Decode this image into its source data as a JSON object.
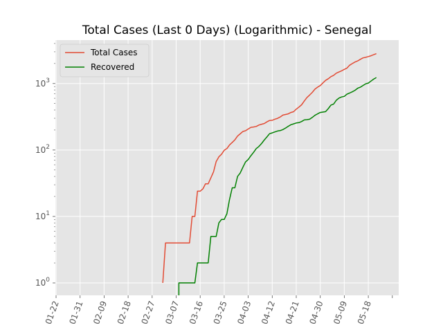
{
  "chart_data": {
    "type": "line",
    "title": "Total Cases (Last 0 Days) (Logarithmic) - Senegal",
    "xlabel": "",
    "ylabel": "",
    "y_scale": "log",
    "ylim": [
      0.65,
      4500
    ],
    "grid": true,
    "legend_position": "top-left",
    "x_ticks": [
      "01-22",
      "01-31",
      "02-09",
      "02-18",
      "02-27",
      "03-07",
      "03-16",
      "03-25",
      "04-03",
      "04-12",
      "04-21",
      "04-30",
      "05-09",
      "05-18"
    ],
    "y_ticks": [
      {
        "value": 1,
        "base": "10",
        "exp": "0"
      },
      {
        "value": 10,
        "base": "10",
        "exp": "1"
      },
      {
        "value": 100,
        "base": "10",
        "exp": "2"
      },
      {
        "value": 1000,
        "base": "10",
        "exp": "3"
      }
    ],
    "series": [
      {
        "name": "Total Cases",
        "color": "#E24A33",
        "points": [
          [
            "03-02",
            1
          ],
          [
            "03-03",
            4
          ],
          [
            "03-04",
            4
          ],
          [
            "03-05",
            4
          ],
          [
            "03-06",
            4
          ],
          [
            "03-07",
            4
          ],
          [
            "03-08",
            4
          ],
          [
            "03-09",
            4
          ],
          [
            "03-10",
            4
          ],
          [
            "03-11",
            4
          ],
          [
            "03-12",
            4
          ],
          [
            "03-13",
            10
          ],
          [
            "03-14",
            10
          ],
          [
            "03-15",
            24
          ],
          [
            "03-16",
            24
          ],
          [
            "03-17",
            26
          ],
          [
            "03-18",
            31
          ],
          [
            "03-19",
            31
          ],
          [
            "03-20",
            38
          ],
          [
            "03-21",
            47
          ],
          [
            "03-22",
            67
          ],
          [
            "03-23",
            79
          ],
          [
            "03-24",
            86
          ],
          [
            "03-25",
            99
          ],
          [
            "03-26",
            105
          ],
          [
            "03-27",
            119
          ],
          [
            "03-28",
            130
          ],
          [
            "03-29",
            142
          ],
          [
            "03-30",
            162
          ],
          [
            "03-31",
            175
          ],
          [
            "04-01",
            190
          ],
          [
            "04-02",
            195
          ],
          [
            "04-03",
            207
          ],
          [
            "04-04",
            219
          ],
          [
            "04-05",
            222
          ],
          [
            "04-06",
            226
          ],
          [
            "04-07",
            237
          ],
          [
            "04-08",
            244
          ],
          [
            "04-09",
            250
          ],
          [
            "04-10",
            265
          ],
          [
            "04-11",
            278
          ],
          [
            "04-12",
            280
          ],
          [
            "04-13",
            291
          ],
          [
            "04-14",
            299
          ],
          [
            "04-15",
            314
          ],
          [
            "04-16",
            335
          ],
          [
            "04-17",
            342
          ],
          [
            "04-18",
            350
          ],
          [
            "04-19",
            367
          ],
          [
            "04-20",
            377
          ],
          [
            "04-21",
            412
          ],
          [
            "04-22",
            442
          ],
          [
            "04-23",
            479
          ],
          [
            "04-24",
            545
          ],
          [
            "04-25",
            614
          ],
          [
            "04-26",
            671
          ],
          [
            "04-27",
            736
          ],
          [
            "04-28",
            823
          ],
          [
            "04-29",
            882
          ],
          [
            "04-30",
            933
          ],
          [
            "05-01",
            1024
          ],
          [
            "05-02",
            1115
          ],
          [
            "05-03",
            1182
          ],
          [
            "05-04",
            1271
          ],
          [
            "05-05",
            1329
          ],
          [
            "05-06",
            1433
          ],
          [
            "05-07",
            1492
          ],
          [
            "05-08",
            1551
          ],
          [
            "05-09",
            1634
          ],
          [
            "05-10",
            1709
          ],
          [
            "05-11",
            1886
          ],
          [
            "05-12",
            1995
          ],
          [
            "05-13",
            2105
          ],
          [
            "05-14",
            2189
          ],
          [
            "05-15",
            2310
          ],
          [
            "05-16",
            2429
          ],
          [
            "05-17",
            2480
          ],
          [
            "05-18",
            2544
          ],
          [
            "05-19",
            2617
          ],
          [
            "05-20",
            2714
          ],
          [
            "05-21",
            2812
          ]
        ]
      },
      {
        "name": "Recovered",
        "color": "#008000",
        "points": [
          [
            "03-08",
            0.5
          ],
          [
            "03-08",
            1
          ],
          [
            "03-09",
            1
          ],
          [
            "03-10",
            1
          ],
          [
            "03-11",
            1
          ],
          [
            "03-12",
            1
          ],
          [
            "03-13",
            1
          ],
          [
            "03-14",
            1
          ],
          [
            "03-15",
            2
          ],
          [
            "03-16",
            2
          ],
          [
            "03-17",
            2
          ],
          [
            "03-18",
            2
          ],
          [
            "03-19",
            2
          ],
          [
            "03-20",
            5
          ],
          [
            "03-21",
            5
          ],
          [
            "03-22",
            5
          ],
          [
            "03-23",
            8
          ],
          [
            "03-24",
            9
          ],
          [
            "03-25",
            9
          ],
          [
            "03-26",
            11
          ],
          [
            "03-27",
            18
          ],
          [
            "03-28",
            27
          ],
          [
            "03-29",
            27
          ],
          [
            "03-30",
            40
          ],
          [
            "03-31",
            45
          ],
          [
            "04-01",
            55
          ],
          [
            "04-02",
            66
          ],
          [
            "04-03",
            72
          ],
          [
            "04-04",
            82
          ],
          [
            "04-05",
            92
          ],
          [
            "04-06",
            105
          ],
          [
            "04-07",
            113
          ],
          [
            "04-08",
            125
          ],
          [
            "04-09",
            141
          ],
          [
            "04-10",
            157
          ],
          [
            "04-11",
            176
          ],
          [
            "04-12",
            181
          ],
          [
            "04-13",
            187
          ],
          [
            "04-14",
            193
          ],
          [
            "04-15",
            196
          ],
          [
            "04-16",
            203
          ],
          [
            "04-17",
            214
          ],
          [
            "04-18",
            227
          ],
          [
            "04-19",
            240
          ],
          [
            "04-20",
            247
          ],
          [
            "04-21",
            255
          ],
          [
            "04-22",
            258
          ],
          [
            "04-23",
            268
          ],
          [
            "04-24",
            283
          ],
          [
            "04-25",
            286
          ],
          [
            "04-26",
            290
          ],
          [
            "04-27",
            309
          ],
          [
            "04-28",
            333
          ],
          [
            "04-29",
            350
          ],
          [
            "04-30",
            367
          ],
          [
            "05-01",
            372
          ],
          [
            "05-02",
            378
          ],
          [
            "05-03",
            420
          ],
          [
            "05-04",
            474
          ],
          [
            "05-05",
            492
          ],
          [
            "05-06",
            560
          ],
          [
            "05-07",
            604
          ],
          [
            "05-08",
            627
          ],
          [
            "05-09",
            641
          ],
          [
            "05-10",
            692
          ],
          [
            "05-11",
            719
          ],
          [
            "05-12",
            752
          ],
          [
            "05-13",
            790
          ],
          [
            "05-14",
            848
          ],
          [
            "05-15",
            880
          ],
          [
            "05-16",
            934
          ],
          [
            "05-17",
            989
          ],
          [
            "05-18",
            1016
          ],
          [
            "05-19",
            1090
          ],
          [
            "05-20",
            1166
          ],
          [
            "05-21",
            1232
          ]
        ]
      }
    ]
  }
}
